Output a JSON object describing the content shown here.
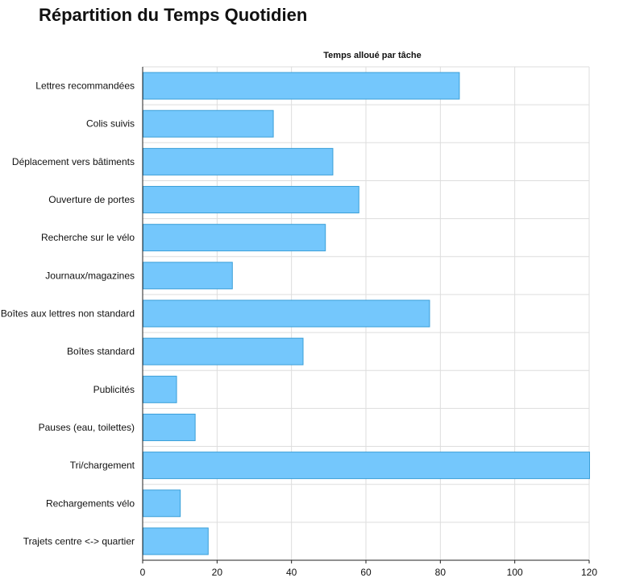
{
  "page": {
    "title": "Répartition du Temps Quotidien"
  },
  "chart_data": {
    "type": "bar",
    "orientation": "horizontal",
    "title": "Temps alloué par tâche",
    "xlabel": "",
    "ylabel": "",
    "categories": [
      "Lettres recommandées",
      "Colis suivis",
      "Déplacement vers bâtiments",
      "Ouverture de portes",
      "Recherche sur le vélo",
      "Journaux/magazines",
      "Boîtes aux lettres non standard",
      "Boîtes standard",
      "Publicités",
      "Pauses (eau, toilettes)",
      "Tri/chargement",
      "Rechargements vélo",
      "Trajets centre <-> quartier"
    ],
    "values": [
      85,
      35,
      51,
      58,
      49,
      24,
      77,
      43,
      9,
      14,
      120,
      10,
      17.5
    ],
    "xlim": [
      0,
      120
    ],
    "xticks": [
      0,
      20,
      40,
      60,
      80,
      100,
      120
    ],
    "grid": true,
    "legend": "none",
    "colors": {
      "bar_fill": "#74C7FC",
      "bar_stroke": "#3A9FD8",
      "grid": "#DDDDDD",
      "axis": "#222222"
    }
  }
}
